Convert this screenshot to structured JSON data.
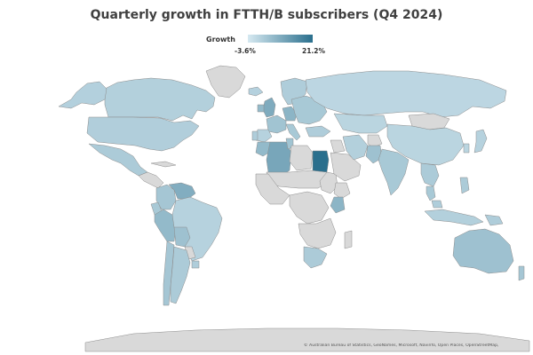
{
  "title": "Quarterly growth in FTTH/B subscribers (Q4 2024)",
  "legend": {
    "label": "Growth",
    "min_label": "-3.6%",
    "max_label": "21.2%",
    "min_value": -3.6,
    "max_value": 21.2,
    "color_low": "#d6e9f1",
    "color_high": "#2a6f8d"
  },
  "colors": {
    "no_data": "#d9d9d9",
    "border": "#8c8c8c"
  },
  "attribution": "© Australian Bureau of Statistics, GeoNames, Microsoft, Navinfo, Open Places, OpenStreetMap,",
  "regions": [
    {
      "name": "Canada",
      "growth": 1.5
    },
    {
      "name": "United States",
      "growth": 1.8
    },
    {
      "name": "Alaska",
      "growth": 1.4
    },
    {
      "name": "Greenland"
    },
    {
      "name": "Mexico",
      "growth": 2.5
    },
    {
      "name": "Central America"
    },
    {
      "name": "Cuba"
    },
    {
      "name": "Colombia",
      "growth": 3.5
    },
    {
      "name": "Venezuela",
      "growth": 8.5
    },
    {
      "name": "Ecuador",
      "growth": 3.0
    },
    {
      "name": "Peru",
      "growth": 6.0
    },
    {
      "name": "Brazil",
      "growth": 1.0
    },
    {
      "name": "Bolivia",
      "growth": 4.5
    },
    {
      "name": "Paraguay"
    },
    {
      "name": "Argentina",
      "growth": 2.5
    },
    {
      "name": "Chile",
      "growth": 3.5
    },
    {
      "name": "Uruguay",
      "growth": 2.0
    },
    {
      "name": "Iceland",
      "growth": 1.2
    },
    {
      "name": "United Kingdom",
      "growth": 9.0
    },
    {
      "name": "Ireland",
      "growth": 6.0
    },
    {
      "name": "Western Europe",
      "growth": 4.0
    },
    {
      "name": "Spain",
      "growth": 1.0
    },
    {
      "name": "Portugal",
      "growth": 2.0
    },
    {
      "name": "Italy",
      "growth": 3.0
    },
    {
      "name": "Germany",
      "growth": 7.0
    },
    {
      "name": "Scandinavia",
      "growth": 2.0
    },
    {
      "name": "Eastern Europe",
      "growth": 3.0
    },
    {
      "name": "Russia",
      "growth": 0.2
    },
    {
      "name": "Turkey",
      "growth": 2.0
    },
    {
      "name": "Kazakhstan",
      "growth": 0.5
    },
    {
      "name": "Mongolia"
    },
    {
      "name": "China",
      "growth": 0.5
    },
    {
      "name": "Japan",
      "growth": 1.0
    },
    {
      "name": "South Korea",
      "growth": 0.5
    },
    {
      "name": "Morocco",
      "growth": 6.0
    },
    {
      "name": "Algeria",
      "growth": 10.0
    },
    {
      "name": "Tunisia",
      "growth": 4.0
    },
    {
      "name": "Libya"
    },
    {
      "name": "Egypt",
      "growth": 21.2
    },
    {
      "name": "Sahel"
    },
    {
      "name": "West Africa"
    },
    {
      "name": "Sudan"
    },
    {
      "name": "Ethiopia"
    },
    {
      "name": "Central Africa"
    },
    {
      "name": "Kenya",
      "growth": 7.0
    },
    {
      "name": "Southern Africa"
    },
    {
      "name": "South Africa",
      "growth": 2.5
    },
    {
      "name": "Madagascar"
    },
    {
      "name": "Saudi Arabia"
    },
    {
      "name": "Iran",
      "growth": 1.5
    },
    {
      "name": "Iraq"
    },
    {
      "name": "Afghanistan"
    },
    {
      "name": "Pakistan",
      "growth": 4.5
    },
    {
      "name": "India",
      "growth": 3.0
    },
    {
      "name": "Southeast Asia",
      "growth": 2.5
    },
    {
      "name": "Thailand",
      "growth": 3.0
    },
    {
      "name": "Malaysia",
      "growth": 2.0
    },
    {
      "name": "Indonesia",
      "growth": 1.5
    },
    {
      "name": "Philippines",
      "growth": 2.5
    },
    {
      "name": "Papua New Guinea",
      "growth": 2.0
    },
    {
      "name": "Australia",
      "growth": 4.5
    },
    {
      "name": "New Zealand",
      "growth": 3.5
    },
    {
      "name": "Antarctica"
    }
  ]
}
